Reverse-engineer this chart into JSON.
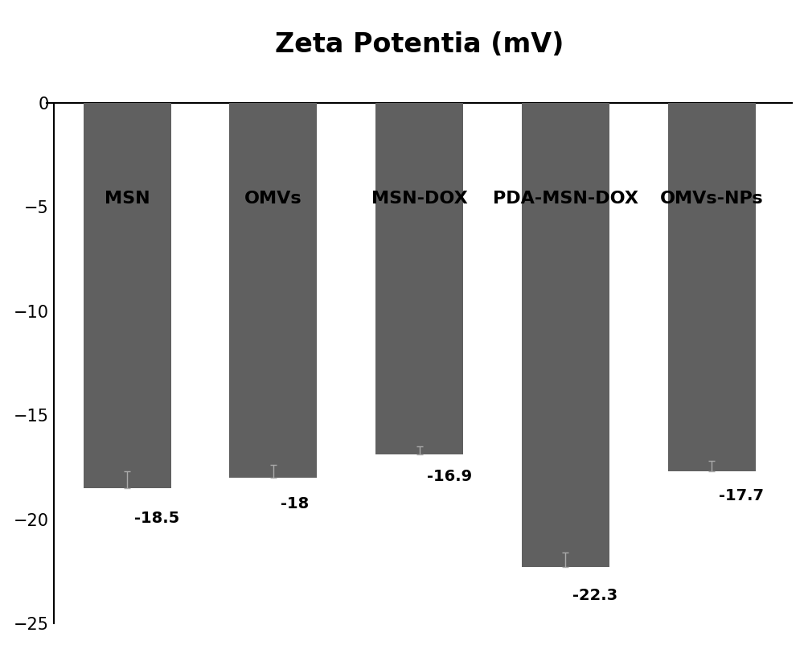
{
  "categories": [
    "MSN",
    "OMVs",
    "MSN-DOX",
    "PDA-MSN-DOX",
    "OMVs-NPs"
  ],
  "values": [
    -18.5,
    -18.0,
    -16.9,
    -22.3,
    -17.7
  ],
  "errors": [
    0.8,
    0.6,
    0.4,
    0.7,
    0.5
  ],
  "bar_color": "#606060",
  "title": "Zeta Potentia (mV)",
  "title_fontsize": 24,
  "title_fontweight": "bold",
  "ylim": [
    -25,
    0
  ],
  "yticks": [
    0,
    -5,
    -10,
    -15,
    -20,
    -25
  ],
  "label_fontsize": 14,
  "category_fontsize": 16,
  "category_fontweight": "bold",
  "value_labels": [
    "-18.5",
    "-18",
    "-16.9",
    "-22.3",
    "-17.7"
  ],
  "background_color": "#ffffff",
  "bar_width": 0.6,
  "tick_fontsize": 15,
  "ytick_fontweight": "bold"
}
